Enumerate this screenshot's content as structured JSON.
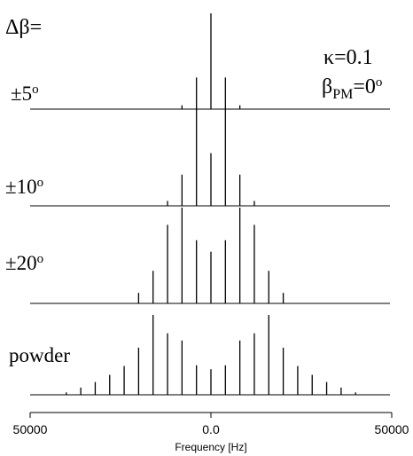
{
  "chart_data": {
    "type": "line",
    "xlabel": "Frequency [Hz]",
    "ylabel": "",
    "x_tick_labels": [
      "50000",
      "0.0",
      "50000"
    ],
    "xlim": [
      -50000,
      50000
    ],
    "axis_direction": "reversed",
    "grid": false,
    "legend": "none",
    "stack_label": "Δβ=",
    "parameter_kappa": "κ=0.1",
    "parameter_beta": {
      "symbol": "β",
      "subscript": "PM",
      "value": "=0",
      "superscript": "o"
    },
    "spinning_frequency_hz": 4000,
    "series": [
      {
        "name": "±5",
        "name_superscript": "o",
        "peak_positions_hz": [
          -8000,
          -4000,
          0,
          4000,
          8000
        ],
        "intensities": [
          0.04,
          0.33,
          1.0,
          0.33,
          0.04
        ]
      },
      {
        "name": "±10",
        "name_superscript": "o",
        "peak_positions_hz": [
          -12000,
          -8000,
          -4000,
          0,
          4000,
          8000,
          12000
        ],
        "intensities": [
          0.05,
          0.32,
          1.0,
          0.54,
          1.0,
          0.32,
          0.05
        ]
      },
      {
        "name": "±20",
        "name_superscript": "o",
        "peak_positions_hz": [
          -20000,
          -16000,
          -12000,
          -8000,
          -4000,
          0,
          4000,
          8000,
          12000,
          16000,
          20000
        ],
        "intensities": [
          0.11,
          0.34,
          0.82,
          1.0,
          0.66,
          0.54,
          0.66,
          1.0,
          0.82,
          0.34,
          0.11
        ]
      },
      {
        "name": "powder",
        "peak_positions_hz": [
          -40000,
          -36000,
          -32000,
          -28000,
          -24000,
          -20000,
          -16000,
          -12000,
          -8000,
          -4000,
          0,
          4000,
          8000,
          12000,
          16000,
          20000,
          24000,
          28000,
          32000,
          36000,
          40000
        ],
        "intensities": [
          0.03,
          0.09,
          0.16,
          0.25,
          0.36,
          0.59,
          1.0,
          0.77,
          0.68,
          0.37,
          0.32,
          0.37,
          0.68,
          0.77,
          1.0,
          0.59,
          0.36,
          0.25,
          0.16,
          0.09,
          0.03
        ]
      }
    ]
  }
}
